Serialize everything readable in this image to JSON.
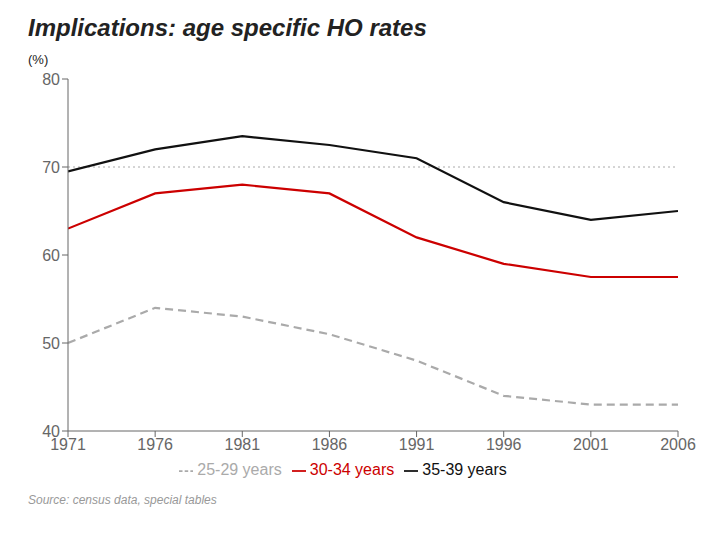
{
  "chart_data": {
    "type": "line",
    "title": "Implications: age specific HO rates",
    "y_label": "(%)",
    "source": "Source: census data, special tables",
    "x": [
      1971,
      1976,
      1981,
      1986,
      1991,
      1996,
      2001,
      2006
    ],
    "xlim": [
      1971,
      2006
    ],
    "xticks": [
      1971,
      1976,
      1981,
      1986,
      1991,
      1996,
      2001,
      2006
    ],
    "ylim": [
      40,
      80
    ],
    "yticks": [
      40,
      50,
      60,
      70,
      80
    ],
    "hlines": [
      70
    ],
    "grid": false,
    "legend": "bottom",
    "series": [
      {
        "name": "25-29 years",
        "color": "#aaaaaa",
        "line_style": "dashed",
        "values": [
          50,
          54,
          53,
          51,
          48,
          44,
          43,
          43
        ]
      },
      {
        "name": "30-34 years",
        "color": "#cc0000",
        "line_style": "solid",
        "values": [
          63,
          67,
          68,
          67,
          62,
          59,
          57.5,
          57.5
        ]
      },
      {
        "name": "35-39 years",
        "color": "#111111",
        "line_style": "solid",
        "values": [
          69.5,
          72,
          73.5,
          72.5,
          71,
          66,
          64,
          65
        ]
      }
    ]
  }
}
